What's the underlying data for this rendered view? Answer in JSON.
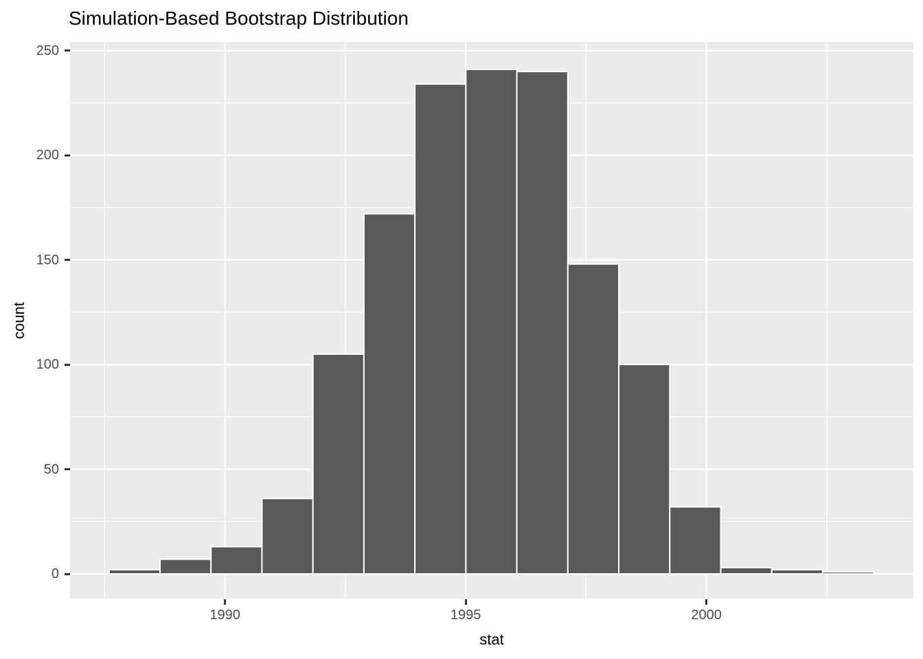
{
  "chart": {
    "title": "Simulation-Based Bootstrap Distribution",
    "xlabel": "stat",
    "ylabel": "count"
  },
  "chart_data": {
    "type": "bar",
    "subtype": "histogram",
    "title": "Simulation-Based Bootstrap Distribution",
    "xlabel": "stat",
    "ylabel": "count",
    "bin_start": 1987.59,
    "bin_width": 1.059,
    "bin_centers": [
      1988.12,
      1989.18,
      1990.24,
      1991.3,
      1992.36,
      1993.42,
      1994.48,
      1995.53,
      1996.59,
      1997.65,
      1998.71,
      1999.77,
      2000.83,
      2001.89,
      2002.95
    ],
    "counts": [
      2,
      7,
      13,
      36,
      105,
      172,
      234,
      241,
      240,
      148,
      100,
      32,
      3,
      2,
      1
    ],
    "x_major_ticks": [
      1990,
      1995,
      2000
    ],
    "x_tick_labels": [
      "1990",
      "1995",
      "2000"
    ],
    "x_minor_ticks": [
      1987.5,
      1992.5,
      1997.5,
      2002.5
    ],
    "y_major_ticks": [
      0,
      50,
      100,
      150,
      200,
      250
    ],
    "y_tick_labels": [
      "0",
      "50",
      "100",
      "150",
      "200",
      "250"
    ],
    "y_minor_ticks": [
      25,
      75,
      125,
      175,
      225
    ],
    "xlim": [
      1986.78,
      2004.3
    ],
    "ylim": [
      -11.8,
      254.15
    ],
    "grid": true,
    "legend": "none",
    "colors": {
      "bar_fill": "#595959",
      "bar_stroke": "#ffffff",
      "panel_bg": "#ebebeb",
      "grid_major": "#ffffff",
      "grid_minor": "#ffffff",
      "tick_label": "#4d4d4d",
      "tick_mark": "#333333",
      "title": "#000000",
      "axis_title": "#000000"
    }
  }
}
